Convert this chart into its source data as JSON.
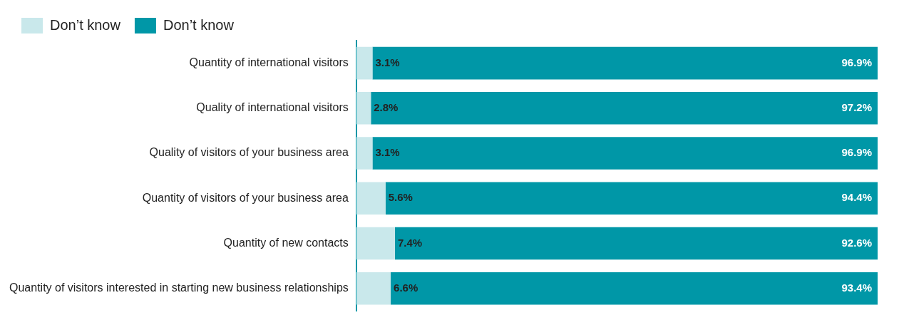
{
  "chart_data": {
    "type": "bar",
    "orientation": "horizontal",
    "stacked": true,
    "legend": "top left",
    "categories": [
      "Quantity of international visitors",
      "Quality of international visitors",
      "Quality of visitors of your business area",
      "Quantity of visitors of your business area",
      "Quantity of new contacts",
      "Quantity of visitors interested in starting new business relationships"
    ],
    "series": [
      {
        "name": "Don’t know",
        "color": "#c9e8eb",
        "values": [
          3.1,
          2.8,
          3.1,
          5.6,
          7.4,
          6.6
        ],
        "value_labels": [
          "3.1%",
          "2.8%",
          "3.1%",
          "5.6%",
          "7.4%",
          "6.6%"
        ]
      },
      {
        "name": "Don’t know",
        "color": "#0097a7",
        "values": [
          96.9,
          97.2,
          96.9,
          94.4,
          92.6,
          93.4
        ],
        "value_labels": [
          "96.9%",
          "97.2%",
          "96.9%",
          "94.4%",
          "92.6%",
          "93.4%"
        ]
      }
    ]
  }
}
